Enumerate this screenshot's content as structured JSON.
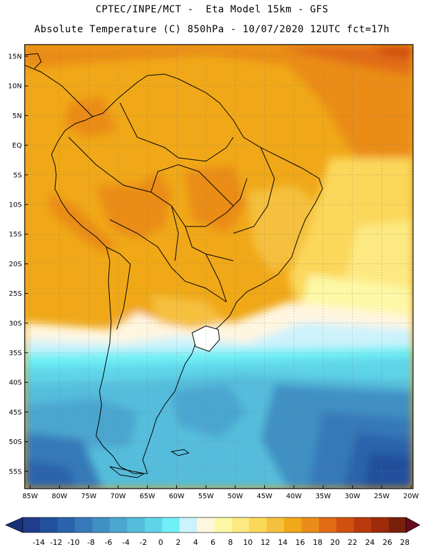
{
  "header": {
    "line1": "CPTEC/INPE/MCT -  Eta Model 15km - GFS",
    "line2": "Absolute Temperature (C) 850hPa - 10/07/2020 12UTC fct=17h"
  },
  "map": {
    "region": "South America",
    "lat_ticks": [
      "15N",
      "10N",
      "5N",
      "EQ",
      "5S",
      "10S",
      "15S",
      "20S",
      "25S",
      "30S",
      "35S",
      "40S",
      "45S",
      "50S",
      "55S"
    ],
    "lon_ticks": [
      "85W",
      "80W",
      "75W",
      "70W",
      "65W",
      "60W",
      "55W",
      "50W",
      "45W",
      "40W",
      "35W",
      "30W",
      "25W",
      "20W"
    ]
  },
  "colorbar": {
    "labels": [
      "-14",
      "-12",
      "-10",
      "-8",
      "-6",
      "-4",
      "-2",
      "0",
      "2",
      "4",
      "6",
      "8",
      "10",
      "12",
      "14",
      "16",
      "18",
      "20",
      "22",
      "24",
      "26",
      "28"
    ],
    "colors": [
      "#1f3d8a",
      "#23509c",
      "#2a63ab",
      "#3679b9",
      "#4190c4",
      "#4ca6cf",
      "#54bddb",
      "#5fd4e8",
      "#6ff0f6",
      "#ccf2fc",
      "#fff6e0",
      "#fdf8a6",
      "#fde982",
      "#fbd75a",
      "#f5c03e",
      "#f0a818",
      "#ea8c18",
      "#e16c14",
      "#d0500f",
      "#b83a0d",
      "#9c2a0b",
      "#7a1f0a"
    ],
    "low_arrow_color": "#1a2f78",
    "high_arrow_color": "#6a0a1e"
  }
}
